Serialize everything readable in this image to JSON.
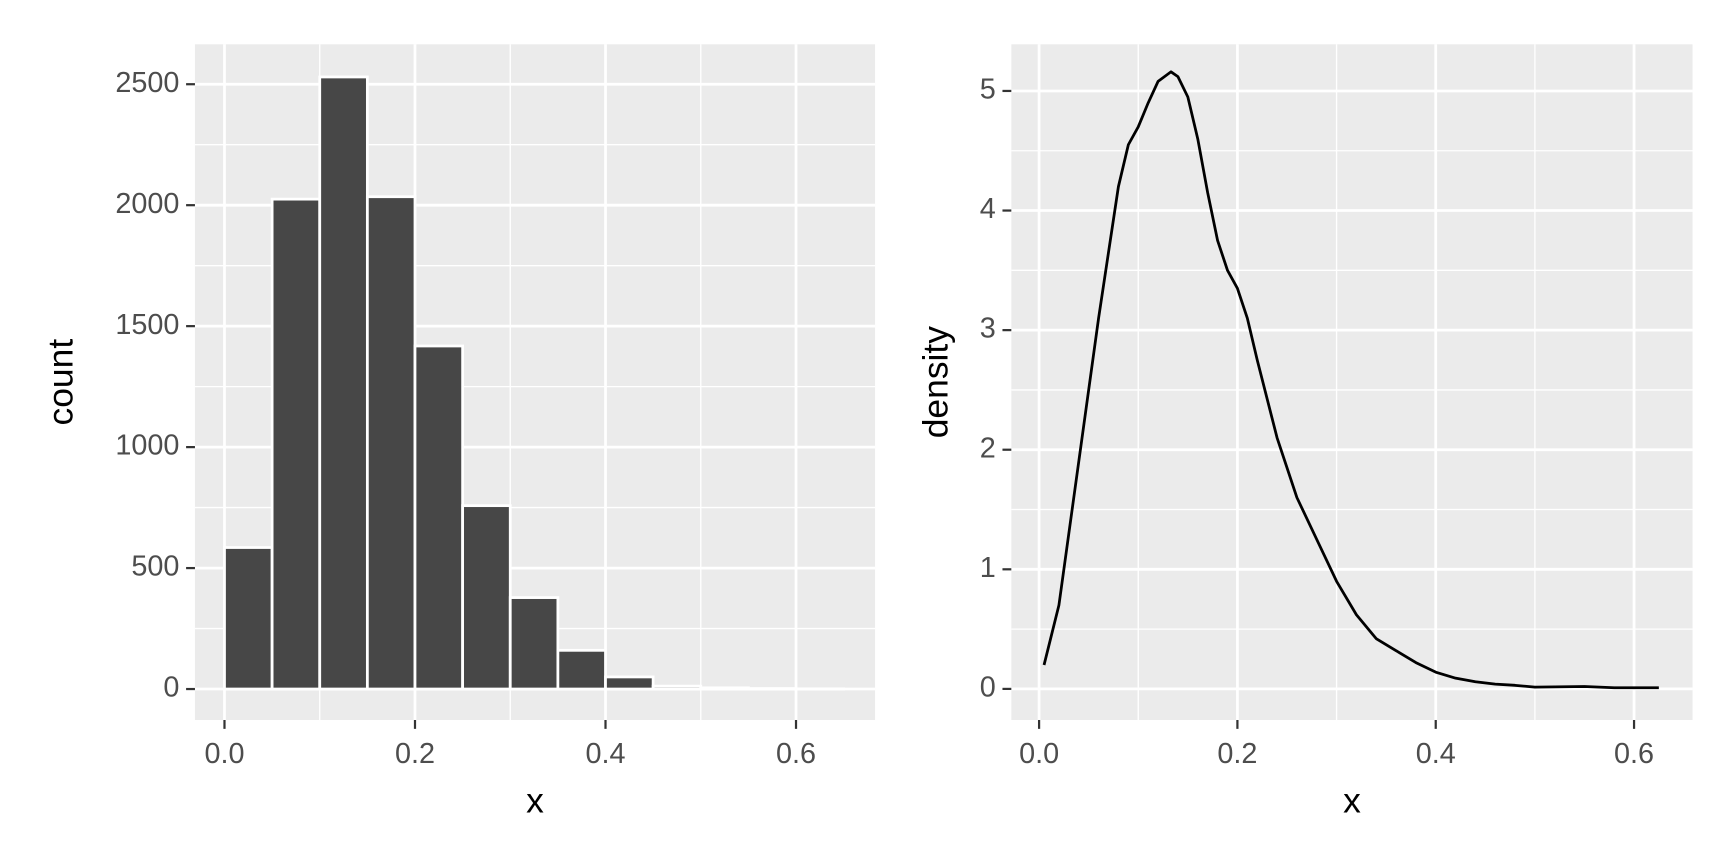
{
  "chart_data": [
    {
      "type": "histogram",
      "xlabel": "x",
      "ylabel": "count",
      "bins": [
        0,
        0.05,
        0.1,
        0.15,
        0.2,
        0.25,
        0.3,
        0.35,
        0.4,
        0.45,
        0.5,
        0.55,
        0.6,
        0.65
      ],
      "values": [
        585,
        2025,
        2530,
        2035,
        1418,
        758,
        378,
        160,
        50,
        12,
        5,
        2,
        1
      ],
      "color": "#474747",
      "xlim": [
        -0.031,
        0.683
      ],
      "ylim": [
        -128,
        2665
      ],
      "xticks": [
        {
          "value": 0,
          "label": "0.0"
        },
        0.2,
        0.4,
        0.6
      ],
      "yticks": [
        0,
        500,
        1000,
        1500,
        2000,
        2500
      ],
      "grid": true
    },
    {
      "type": "line",
      "xlabel": "x",
      "ylabel": "density",
      "x": [
        0.005,
        0.02,
        0.04,
        0.06,
        0.08,
        0.09,
        0.1,
        0.11,
        0.12,
        0.133,
        0.14,
        0.15,
        0.16,
        0.17,
        0.18,
        0.19,
        0.2,
        0.21,
        0.22,
        0.24,
        0.26,
        0.28,
        0.3,
        0.32,
        0.34,
        0.36,
        0.38,
        0.4,
        0.42,
        0.44,
        0.46,
        0.48,
        0.5,
        0.55,
        0.58,
        0.625
      ],
      "y": [
        0.2,
        0.7,
        1.9,
        3.1,
        4.2,
        4.55,
        4.7,
        4.9,
        5.08,
        5.16,
        5.12,
        4.95,
        4.6,
        4.15,
        3.75,
        3.5,
        3.35,
        3.1,
        2.75,
        2.1,
        1.6,
        1.25,
        0.9,
        0.62,
        0.42,
        0.32,
        0.22,
        0.14,
        0.09,
        0.06,
        0.04,
        0.03,
        0.015,
        0.02,
        0.01,
        0.01
      ],
      "color": "#000000",
      "xlim": [
        -0.028,
        0.659
      ],
      "ylim": [
        -0.26,
        5.39
      ],
      "xticks": [
        {
          "value": 0,
          "label": "0.0"
        },
        0.2,
        0.4,
        0.6
      ],
      "yticks": [
        0,
        1,
        2,
        3,
        4,
        5
      ],
      "grid": true
    }
  ]
}
